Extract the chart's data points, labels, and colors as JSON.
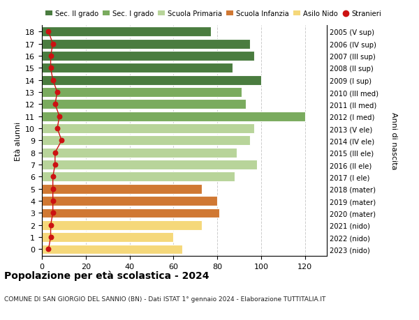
{
  "ages": [
    18,
    17,
    16,
    15,
    14,
    13,
    12,
    11,
    10,
    9,
    8,
    7,
    6,
    5,
    4,
    3,
    2,
    1,
    0
  ],
  "values": [
    77,
    95,
    97,
    87,
    100,
    91,
    93,
    120,
    97,
    95,
    89,
    98,
    88,
    73,
    80,
    81,
    73,
    60,
    64
  ],
  "stranieri": [
    3,
    5,
    4,
    4,
    5,
    7,
    6,
    8,
    7,
    9,
    6,
    6,
    5,
    5,
    5,
    5,
    4,
    4,
    3
  ],
  "right_labels": [
    "2005 (V sup)",
    "2006 (IV sup)",
    "2007 (III sup)",
    "2008 (II sup)",
    "2009 (I sup)",
    "2010 (III med)",
    "2011 (II med)",
    "2012 (I med)",
    "2013 (V ele)",
    "2014 (IV ele)",
    "2015 (III ele)",
    "2016 (II ele)",
    "2017 (I ele)",
    "2018 (mater)",
    "2019 (mater)",
    "2020 (mater)",
    "2021 (nido)",
    "2022 (nido)",
    "2023 (nido)"
  ],
  "bar_colors": [
    "#4a7c3f",
    "#4a7c3f",
    "#4a7c3f",
    "#4a7c3f",
    "#4a7c3f",
    "#7aab5e",
    "#7aab5e",
    "#7aab5e",
    "#b8d49a",
    "#b8d49a",
    "#b8d49a",
    "#b8d49a",
    "#b8d49a",
    "#d07833",
    "#d07833",
    "#d07833",
    "#f5d87a",
    "#f5d87a",
    "#f5d87a"
  ],
  "legend_labels": [
    "Sec. II grado",
    "Sec. I grado",
    "Scuola Primaria",
    "Scuola Infanzia",
    "Asilo Nido",
    "Stranieri"
  ],
  "legend_colors": [
    "#4a7c3f",
    "#7aab5e",
    "#b8d49a",
    "#d07833",
    "#f5d87a",
    "#cc1111"
  ],
  "stranieri_color": "#cc1111",
  "title": "Popolazione per età scolastica - 2024",
  "subtitle": "COMUNE DI SAN GIORGIO DEL SANNIO (BN) - Dati ISTAT 1° gennaio 2024 - Elaborazione TUTTITALIA.IT",
  "ylabel": "Età alunni",
  "ylabel_right": "Anni di nascita",
  "xlim": [
    0,
    130
  ],
  "xticks": [
    0,
    20,
    40,
    60,
    80,
    100,
    120
  ],
  "bg_color": "#ffffff",
  "grid_color": "#cccccc"
}
